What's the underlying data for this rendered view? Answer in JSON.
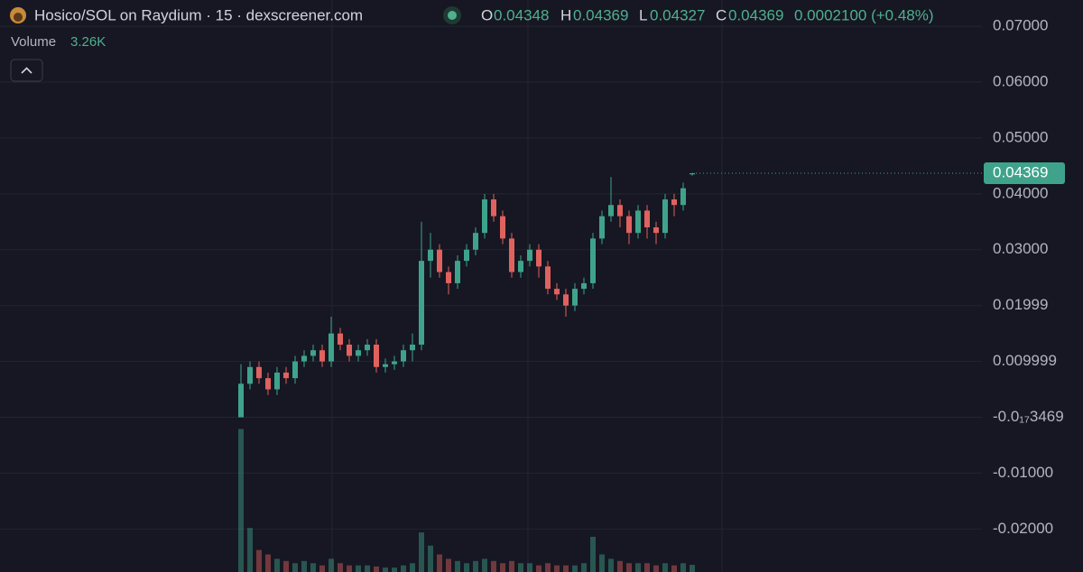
{
  "header": {
    "title": "Hosico/SOL on Raydium · 15 · dexscreener.com",
    "ohlc_labels": [
      "O",
      "H",
      "L",
      "C"
    ],
    "change": "0.0002100 (+0.48%)"
  },
  "chart_data": {
    "type": "candlestick",
    "open": [
      0.0,
      0.006,
      0.009,
      0.007,
      0.005,
      0.008,
      0.007,
      0.01,
      0.011,
      0.012,
      0.01,
      0.015,
      0.013,
      0.011,
      0.012,
      0.013,
      0.009,
      0.0095,
      0.01,
      0.012,
      0.013,
      0.028,
      0.03,
      0.026,
      0.024,
      0.028,
      0.03,
      0.033,
      0.039,
      0.036,
      0.032,
      0.026,
      0.028,
      0.03,
      0.027,
      0.023,
      0.022,
      0.02,
      0.023,
      0.024,
      0.032,
      0.036,
      0.038,
      0.036,
      0.033,
      0.037,
      0.034,
      0.033,
      0.039,
      0.038,
      0.04348
    ],
    "high": [
      0.0095,
      0.01,
      0.01,
      0.008,
      0.009,
      0.009,
      0.011,
      0.012,
      0.013,
      0.013,
      0.018,
      0.016,
      0.014,
      0.013,
      0.014,
      0.014,
      0.0105,
      0.011,
      0.013,
      0.015,
      0.035,
      0.033,
      0.031,
      0.027,
      0.029,
      0.031,
      0.034,
      0.04,
      0.04,
      0.037,
      0.033,
      0.029,
      0.031,
      0.031,
      0.028,
      0.024,
      0.023,
      0.024,
      0.025,
      0.033,
      0.037,
      0.043,
      0.039,
      0.037,
      0.038,
      0.038,
      0.035,
      0.04,
      0.04,
      0.042,
      0.04369
    ],
    "low": [
      0.0,
      0.005,
      0.006,
      0.004,
      0.004,
      0.006,
      0.006,
      0.009,
      0.01,
      0.009,
      0.009,
      0.012,
      0.01,
      0.01,
      0.011,
      0.008,
      0.008,
      0.0085,
      0.009,
      0.01,
      0.012,
      0.025,
      0.025,
      0.022,
      0.023,
      0.027,
      0.029,
      0.032,
      0.035,
      0.031,
      0.025,
      0.025,
      0.027,
      0.025,
      0.022,
      0.021,
      0.018,
      0.019,
      0.022,
      0.023,
      0.031,
      0.035,
      0.034,
      0.031,
      0.032,
      0.032,
      0.031,
      0.032,
      0.036,
      0.037,
      0.04327
    ],
    "close": [
      0.006,
      0.009,
      0.007,
      0.005,
      0.008,
      0.007,
      0.01,
      0.011,
      0.012,
      0.01,
      0.015,
      0.013,
      0.011,
      0.012,
      0.013,
      0.009,
      0.0095,
      0.01,
      0.012,
      0.013,
      0.028,
      0.03,
      0.026,
      0.024,
      0.028,
      0.03,
      0.033,
      0.039,
      0.036,
      0.032,
      0.026,
      0.028,
      0.03,
      0.027,
      0.023,
      0.022,
      0.02,
      0.023,
      0.024,
      0.032,
      0.036,
      0.038,
      0.036,
      0.033,
      0.037,
      0.034,
      0.033,
      0.039,
      0.038,
      0.041,
      0.04369
    ],
    "volume": {
      "name": "Volume",
      "last_label": "3.26K",
      "values": [
        65000,
        20000,
        10000,
        8000,
        6000,
        5000,
        4000,
        5000,
        4000,
        3000,
        6000,
        4000,
        3000,
        3000,
        3000,
        2500,
        2000,
        2000,
        3000,
        4000,
        18000,
        12000,
        8000,
        6000,
        5000,
        4000,
        5000,
        6000,
        5000,
        4000,
        5000,
        4000,
        4000,
        3000,
        4000,
        3000,
        3000,
        3000,
        4000,
        16000,
        8000,
        6000,
        5000,
        4000,
        4000,
        4000,
        3000,
        4000,
        3000,
        4000,
        3260
      ],
      "ylim": [
        0,
        260000
      ]
    },
    "up_color": "#3fa38b",
    "down_color": "#e0625f",
    "ylim": [
      -0.0277,
      0.0747
    ],
    "yticks": [
      {
        "value": 0.07,
        "label": "0.07000"
      },
      {
        "value": 0.06,
        "label": "0.06000"
      },
      {
        "value": 0.05,
        "label": "0.05000"
      },
      {
        "value": 0.04,
        "label": "0.04000"
      },
      {
        "value": 0.03,
        "label": "0.03000"
      },
      0.01999,
      0.009999,
      {
        "value": -3.469e-18,
        "label": "-0.0₁₇3469"
      },
      {
        "value": -0.01,
        "label": "-0.01000"
      },
      {
        "value": -0.02,
        "label": "-0.02000"
      }
    ],
    "grid": true
  }
}
